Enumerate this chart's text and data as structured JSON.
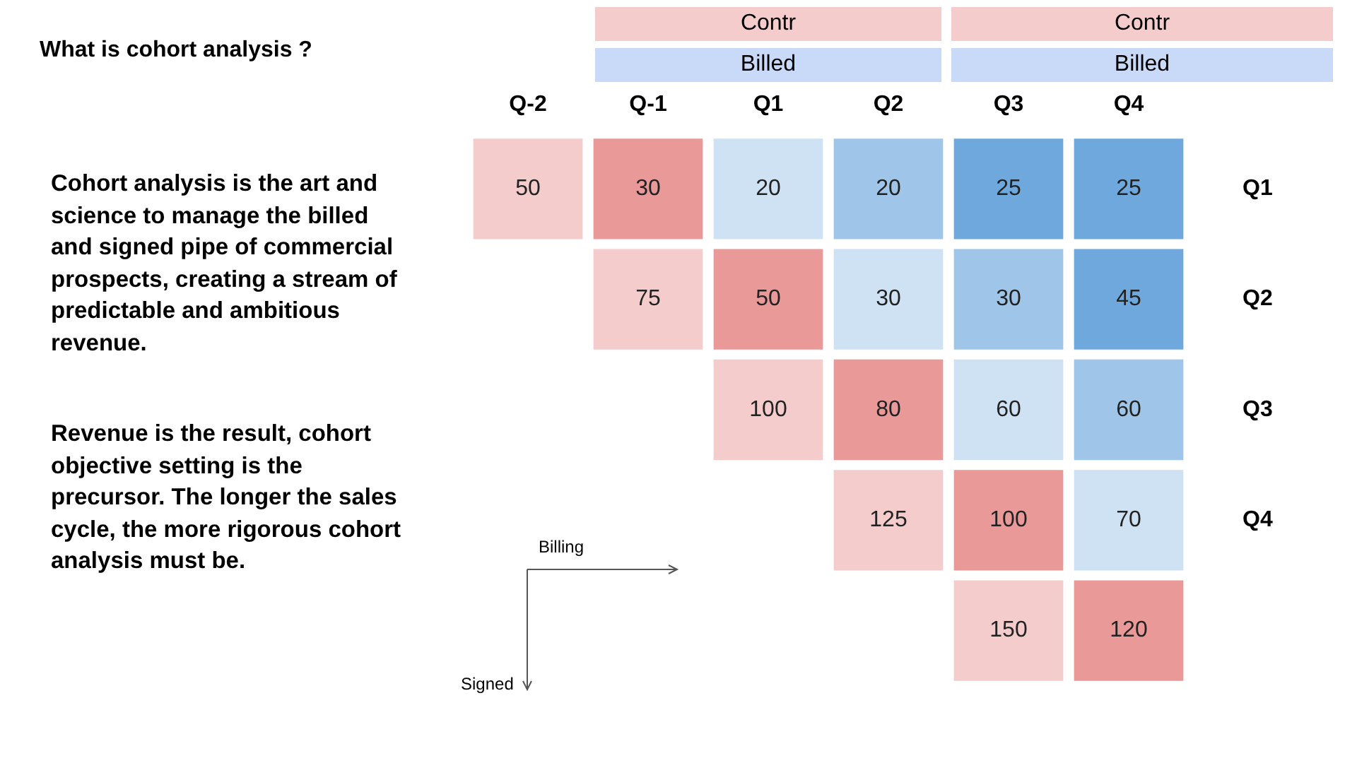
{
  "chart_data": {
    "type": "heatmap",
    "title": "What is cohort analysis ?",
    "categories": [
      "Q-2",
      "Q-1",
      "Q1",
      "Q2",
      "Q3",
      "Q4"
    ],
    "y_categories": [
      "Q1",
      "Q2",
      "Q3",
      "Q4",
      null
    ],
    "cells": [
      [
        50,
        30,
        20,
        20,
        25,
        25
      ],
      [
        null,
        75,
        50,
        30,
        30,
        45
      ],
      [
        null,
        null,
        100,
        80,
        60,
        60
      ],
      [
        null,
        null,
        null,
        125,
        100,
        70
      ],
      [
        null,
        null,
        null,
        null,
        150,
        120
      ]
    ],
    "colors": [
      [
        "#f4cccc",
        "#ea9999",
        "#cfe2f3",
        "#9fc5e8",
        "#6fa8dc",
        "#6fa8dc"
      ],
      [
        null,
        "#f4cccc",
        "#ea9999",
        "#cfe2f3",
        "#9fc5e8",
        "#6fa8dc"
      ],
      [
        null,
        null,
        "#f4cccc",
        "#ea9999",
        "#cfe2f3",
        "#9fc5e8"
      ],
      [
        null,
        null,
        null,
        "#f4cccc",
        "#ea9999",
        "#cfe2f3"
      ],
      [
        null,
        null,
        null,
        null,
        "#f4cccc",
        "#ea9999"
      ]
    ],
    "data_labels": true,
    "annotations": [
      "Cohort analysis is the art and science to manage the billed and signed pipe of commercial prospects, creating a stream of predictable and ambitious revenue.",
      "Revenue is the result, cohort objective setting is the precursor. The longer the sales cycle, the more rigorous cohort analysis must be.",
      "Contr",
      "Contr",
      "Billed",
      "Billed",
      "Billing",
      "Signed"
    ]
  }
}
